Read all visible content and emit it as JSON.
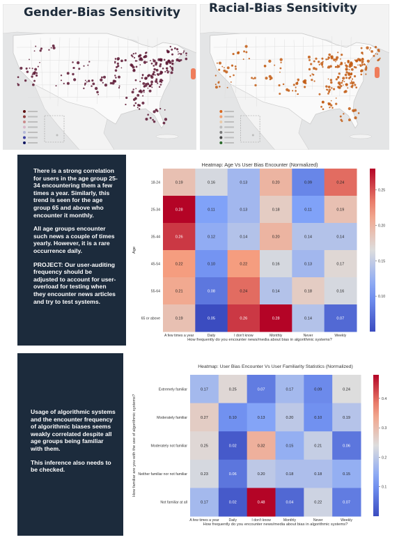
{
  "maps": [
    {
      "title": "Gender-Bias Sensitivity",
      "legend": [
        {
          "label": "",
          "color": "#5c0f0f"
        },
        {
          "label": "",
          "color": "#8e3b3b"
        },
        {
          "label": "",
          "color": "#c98a8a"
        },
        {
          "label": "",
          "color": "#d8b7c8"
        },
        {
          "label": "",
          "color": "#b4b8d8"
        },
        {
          "label": "",
          "color": "#3b3fa0"
        },
        {
          "label": "",
          "color": "#0f1660"
        }
      ],
      "dot_color": "#5b1531"
    },
    {
      "title": "Racial-Bias Sensitivity",
      "legend": [
        {
          "label": "",
          "color": "#d9651b"
        },
        {
          "label": "",
          "color": "#f0a070"
        },
        {
          "label": "",
          "color": "#e9c9a8"
        },
        {
          "label": "",
          "color": "#bbbbbb"
        },
        {
          "label": "",
          "color": "#7a7a7a"
        },
        {
          "label": "",
          "color": "#444444"
        },
        {
          "label": "",
          "color": "#2a6a2a"
        }
      ],
      "dot_color": "#c25a12"
    }
  ],
  "insight_1": {
    "p1": "There is a strong correlation for users in the age group 25-34 encountering them a few times a year. Similarly, this trend is seen for the age group 65 and above who encounter it monthly.",
    "p2": "All age groups encounter such news a couple of times yearly. However, it is a rare occurrence daily.",
    "p3": "PROJECT: Our user-auditing frequency should be adjusted to account for user-overload for testing when they encounter news articles and try to test systems."
  },
  "insight_2": {
    "p1": "Usage of algorithmic systems and the encounter frequency of algorithmic biases seems weakly correlated despite all age groups being familiar with them.",
    "p2": "This inference also needs to be checked."
  },
  "chart_data": [
    {
      "type": "heatmap",
      "title": "Heatmap: Age Vs User Bias Encounter (Normalized)",
      "xlabel": "How frequently do you encounter news/media about bias in algorithmic systems?",
      "ylabel": "Age",
      "x": [
        "A few times a year",
        "Daily",
        "I don't know",
        "Monthly",
        "Never",
        "Weekly"
      ],
      "y": [
        "18-24",
        "25-34",
        "35-44",
        "45-54",
        "55-64",
        "65 or above"
      ],
      "values": [
        [
          0.19,
          0.16,
          0.13,
          0.2,
          0.09,
          0.24
        ],
        [
          0.28,
          0.11,
          0.13,
          0.18,
          0.11,
          0.19
        ],
        [
          0.26,
          0.12,
          0.14,
          0.2,
          0.14,
          0.14
        ],
        [
          0.22,
          0.1,
          0.22,
          0.16,
          0.13,
          0.17
        ],
        [
          0.21,
          0.08,
          0.24,
          0.14,
          0.18,
          0.16
        ],
        [
          0.19,
          0.05,
          0.26,
          0.28,
          0.14,
          0.07
        ]
      ],
      "colorbar": {
        "min": 0.05,
        "max": 0.28,
        "ticks": [
          0.1,
          0.15,
          0.2,
          0.25
        ]
      },
      "colormap": "coolwarm"
    },
    {
      "type": "heatmap",
      "title": "Heatmap: User Bias Encounter Vs User Familiarity Statistics (Normalized)",
      "xlabel": "How frequently do you encounter news/media about bias in algorithmic systems?",
      "ylabel": "How familiar are you with the use of algorithmic systems?",
      "x": [
        "A few times a year",
        "Daily",
        "I don't know",
        "Monthly",
        "Never",
        "Weekly"
      ],
      "y": [
        "Extremely familiar",
        "Moderately familiar",
        "Moderately not familiar",
        "Neither familiar nor not familiar",
        "Not familiar at all"
      ],
      "values": [
        [
          0.17,
          0.25,
          0.07,
          0.17,
          0.09,
          0.24
        ],
        [
          0.27,
          0.1,
          0.13,
          0.2,
          0.1,
          0.19
        ],
        [
          0.25,
          0.02,
          0.32,
          0.15,
          0.21,
          0.06
        ],
        [
          0.23,
          0.06,
          0.2,
          0.18,
          0.18,
          0.15
        ],
        [
          0.17,
          0.02,
          0.48,
          0.04,
          0.22,
          0.07
        ]
      ],
      "colorbar": {
        "min": 0.0,
        "max": 0.48,
        "ticks": [
          0.1,
          0.2,
          0.3,
          0.4
        ]
      },
      "colormap": "coolwarm"
    }
  ]
}
